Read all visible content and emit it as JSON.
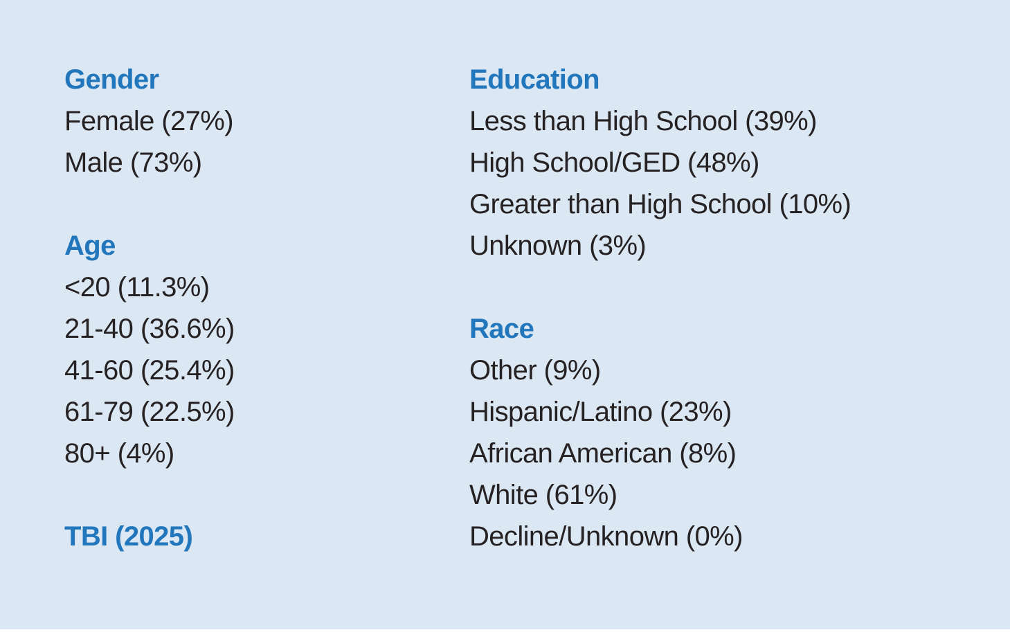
{
  "page": {
    "background": "#dbe7f3",
    "accent_color": "#2176bc",
    "text_color": "#262223"
  },
  "columns": {
    "left": {
      "sections": [
        {
          "heading": "Gender",
          "items": [
            "Female (27%)",
            "Male (73%)"
          ]
        },
        {
          "heading": "Age",
          "items": [
            "<20 (11.3%)",
            "21-40 (36.6%)",
            "41-60 (25.4%)",
            "61-79 (22.5%)",
            "80+ (4%)"
          ]
        },
        {
          "heading": "TBI (2025)",
          "items": []
        }
      ]
    },
    "right": {
      "sections": [
        {
          "heading": "Education",
          "items": [
            "Less than High School (39%)",
            "High School/GED (48%)",
            "Greater than High School (10%)",
            "Unknown (3%)"
          ]
        },
        {
          "heading": "Race",
          "items": [
            "Other (9%)",
            "Hispanic/Latino (23%)",
            "African American (8%)",
            "White (61%)",
            "Decline/Unknown (0%)"
          ]
        }
      ]
    }
  }
}
